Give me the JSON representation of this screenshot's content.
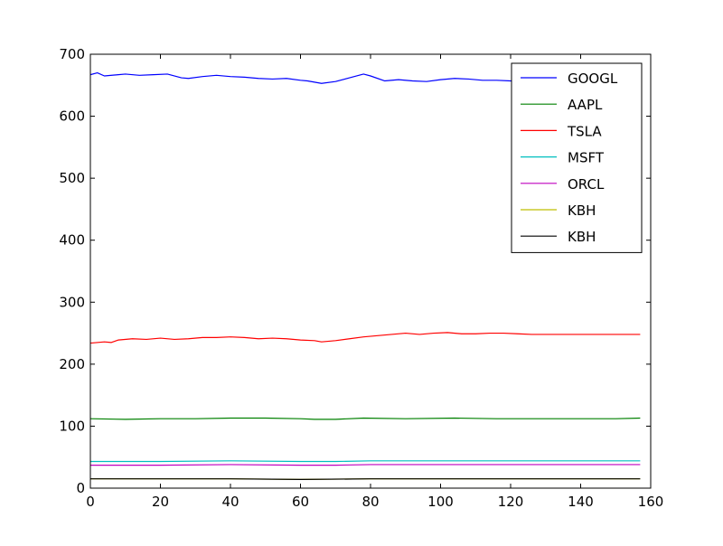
{
  "chart_data": {
    "type": "line",
    "title": "",
    "xlabel": "",
    "ylabel": "",
    "xlim": [
      0,
      160
    ],
    "ylim": [
      0,
      700
    ],
    "x_ticks": [
      0,
      20,
      40,
      60,
      80,
      100,
      120,
      140,
      160
    ],
    "y_ticks": [
      0,
      100,
      200,
      300,
      400,
      500,
      600,
      700
    ],
    "grid": false,
    "legend_position": "top-right",
    "x_end": 157,
    "series": [
      {
        "name": "GOOGL",
        "color": "#0000ff",
        "values": [
          [
            0,
            667
          ],
          [
            2,
            670
          ],
          [
            4,
            665
          ],
          [
            8,
            667
          ],
          [
            10,
            668
          ],
          [
            14,
            666
          ],
          [
            18,
            667
          ],
          [
            22,
            668
          ],
          [
            26,
            662
          ],
          [
            28,
            661
          ],
          [
            32,
            664
          ],
          [
            36,
            666
          ],
          [
            40,
            664
          ],
          [
            44,
            663
          ],
          [
            48,
            661
          ],
          [
            52,
            660
          ],
          [
            56,
            661
          ],
          [
            60,
            658
          ],
          [
            62,
            657
          ],
          [
            66,
            653
          ],
          [
            70,
            656
          ],
          [
            74,
            662
          ],
          [
            78,
            668
          ],
          [
            80,
            665
          ],
          [
            84,
            657
          ],
          [
            88,
            659
          ],
          [
            92,
            657
          ],
          [
            96,
            656
          ],
          [
            100,
            659
          ],
          [
            104,
            661
          ],
          [
            108,
            660
          ],
          [
            112,
            658
          ],
          [
            116,
            658
          ],
          [
            120,
            657
          ],
          [
            124,
            656
          ],
          [
            128,
            656
          ],
          [
            132,
            656
          ],
          [
            136,
            656
          ],
          [
            140,
            657
          ],
          [
            144,
            656
          ],
          [
            148,
            657
          ],
          [
            152,
            656
          ],
          [
            157,
            657
          ]
        ]
      },
      {
        "name": "AAPL",
        "color": "#008000",
        "values": [
          [
            0,
            112
          ],
          [
            10,
            111
          ],
          [
            20,
            112
          ],
          [
            30,
            112
          ],
          [
            40,
            113
          ],
          [
            50,
            113
          ],
          [
            60,
            112
          ],
          [
            64,
            111
          ],
          [
            70,
            111
          ],
          [
            78,
            113
          ],
          [
            90,
            112
          ],
          [
            104,
            113
          ],
          [
            116,
            112
          ],
          [
            130,
            112
          ],
          [
            140,
            112
          ],
          [
            150,
            112
          ],
          [
            157,
            113
          ]
        ]
      },
      {
        "name": "TSLA",
        "color": "#ff0000",
        "values": [
          [
            0,
            234
          ],
          [
            4,
            236
          ],
          [
            6,
            235
          ],
          [
            8,
            239
          ],
          [
            12,
            241
          ],
          [
            16,
            240
          ],
          [
            20,
            242
          ],
          [
            24,
            240
          ],
          [
            28,
            241
          ],
          [
            32,
            243
          ],
          [
            36,
            243
          ],
          [
            40,
            244
          ],
          [
            44,
            243
          ],
          [
            48,
            241
          ],
          [
            52,
            242
          ],
          [
            56,
            241
          ],
          [
            60,
            239
          ],
          [
            64,
            238
          ],
          [
            66,
            236
          ],
          [
            70,
            238
          ],
          [
            74,
            241
          ],
          [
            78,
            244
          ],
          [
            82,
            246
          ],
          [
            86,
            248
          ],
          [
            90,
            250
          ],
          [
            94,
            248
          ],
          [
            98,
            250
          ],
          [
            102,
            251
          ],
          [
            106,
            249
          ],
          [
            110,
            249
          ],
          [
            114,
            250
          ],
          [
            118,
            250
          ],
          [
            122,
            249
          ],
          [
            126,
            248
          ],
          [
            130,
            248
          ],
          [
            134,
            248
          ],
          [
            138,
            248
          ],
          [
            142,
            248
          ],
          [
            146,
            248
          ],
          [
            150,
            248
          ],
          [
            157,
            248
          ]
        ]
      },
      {
        "name": "MSFT",
        "color": "#00bfbf",
        "values": [
          [
            0,
            43
          ],
          [
            20,
            43
          ],
          [
            40,
            44
          ],
          [
            60,
            43
          ],
          [
            70,
            43
          ],
          [
            80,
            44
          ],
          [
            100,
            44
          ],
          [
            120,
            44
          ],
          [
            140,
            44
          ],
          [
            157,
            44
          ]
        ]
      },
      {
        "name": "ORCL",
        "color": "#bf00bf",
        "values": [
          [
            0,
            37
          ],
          [
            20,
            37
          ],
          [
            40,
            38
          ],
          [
            60,
            37
          ],
          [
            70,
            37
          ],
          [
            80,
            38
          ],
          [
            100,
            38
          ],
          [
            120,
            38
          ],
          [
            140,
            38
          ],
          [
            157,
            38
          ]
        ]
      },
      {
        "name": "KBH",
        "color": "#bfbf00",
        "values": [
          [
            0,
            15
          ],
          [
            20,
            15
          ],
          [
            40,
            15
          ],
          [
            60,
            14
          ],
          [
            80,
            15
          ],
          [
            100,
            15
          ],
          [
            120,
            15
          ],
          [
            140,
            15
          ],
          [
            157,
            15
          ]
        ]
      },
      {
        "name": "KBH",
        "color": "#000000",
        "values": [
          [
            0,
            15
          ],
          [
            20,
            15
          ],
          [
            40,
            15
          ],
          [
            60,
            14
          ],
          [
            80,
            15
          ],
          [
            100,
            15
          ],
          [
            120,
            15
          ],
          [
            140,
            15
          ],
          [
            157,
            15
          ]
        ]
      }
    ]
  }
}
